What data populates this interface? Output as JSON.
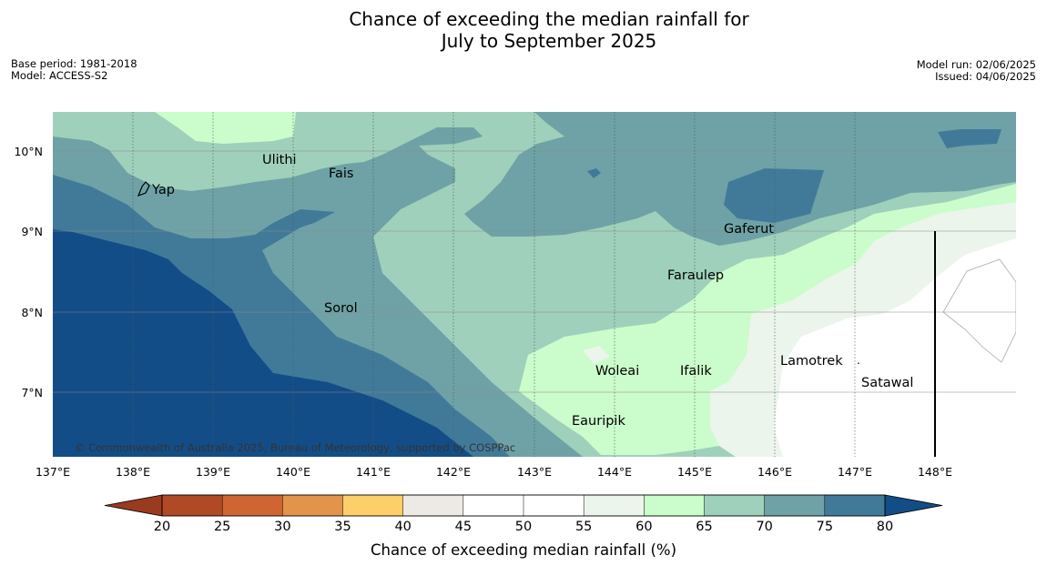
{
  "title": {
    "line1": "Chance of exceeding the median rainfall for",
    "line2": "July to September 2025"
  },
  "meta": {
    "base_period": "Base period: 1981-2018",
    "model": "Model: ACCESS-S2",
    "model_run": "Model run: 02/06/2025",
    "issued": "Issued: 04/06/2025"
  },
  "map": {
    "lon_ticks": [
      "137°E",
      "138°E",
      "139°E",
      "140°E",
      "141°E",
      "142°E",
      "143°E",
      "144°E",
      "145°E",
      "146°E",
      "147°E",
      "148°E"
    ],
    "lat_ticks": [
      "10°N",
      "9°N",
      "8°N",
      "7°N"
    ],
    "places": [
      {
        "name": "Ulithi"
      },
      {
        "name": "Fais"
      },
      {
        "name": "Yap"
      },
      {
        "name": "Gaferut"
      },
      {
        "name": "Faraulep"
      },
      {
        "name": "Sorol"
      },
      {
        "name": "Woleai"
      },
      {
        "name": "Ifalik"
      },
      {
        "name": "Lamotrek"
      },
      {
        "name": "Satawal"
      },
      {
        "name": "Eauripik"
      }
    ],
    "copyright": "© Commonwealth of Australia 2025, Bureau of Meteorology, supported by COSPPac"
  },
  "colorbar": {
    "ticks": [
      "20",
      "25",
      "30",
      "35",
      "40",
      "45",
      "50",
      "55",
      "60",
      "65",
      "70",
      "75",
      "80"
    ],
    "colors": [
      "#b04a26",
      "#cf6533",
      "#e3944b",
      "#fdcf6b",
      "#ede9e5",
      "#ffffff",
      "#ffffff",
      "#ebf5eb",
      "#cbfccb",
      "#9fd0bb",
      "#6ea2a6",
      "#417a99"
    ],
    "under_color": "#9a3b1f",
    "over_color": "#134d87",
    "label": "Chance of exceeding median rainfall (%)"
  }
}
